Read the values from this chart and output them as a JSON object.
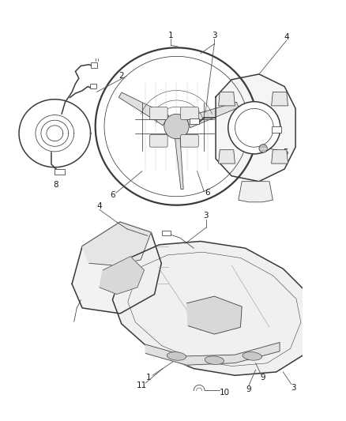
{
  "background_color": "#ffffff",
  "line_color": "#3a3a3a",
  "label_color": "#1a1a1a",
  "fig_width": 4.38,
  "fig_height": 5.33,
  "dpi": 100,
  "lw_main": 1.1,
  "lw_thin": 0.55,
  "lw_thick": 1.6,
  "fs": 7.5
}
